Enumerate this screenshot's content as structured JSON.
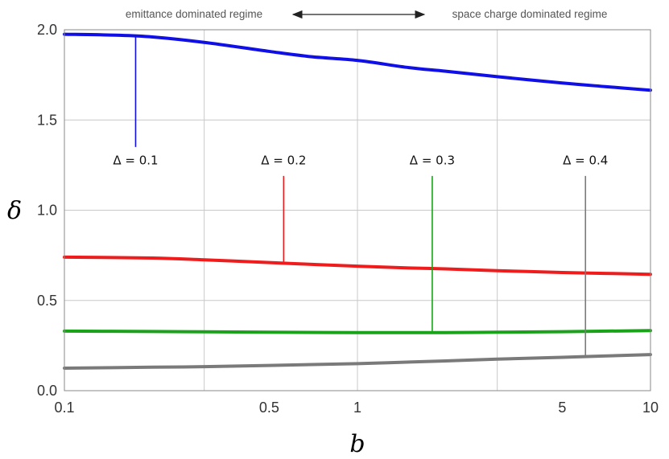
{
  "chart_data": {
    "type": "line",
    "xlabel": "b",
    "ylabel": "δ",
    "xscale": "log",
    "xlim": [
      0.1,
      10
    ],
    "ylim": [
      0,
      2
    ],
    "grid": true,
    "xticks": [
      {
        "value": 0.1,
        "label": "0.1"
      },
      {
        "value": 0.5,
        "label": "0.5"
      },
      {
        "value": 1,
        "label": "1"
      },
      {
        "value": 5,
        "label": "5"
      },
      {
        "value": 10,
        "label": "10"
      }
    ],
    "xgrid": [
      0.1,
      0.3,
      1,
      3,
      10
    ],
    "yticks": [
      {
        "value": 0,
        "label": "0.0"
      },
      {
        "value": 0.5,
        "label": "0.5"
      },
      {
        "value": 1,
        "label": "1.0"
      },
      {
        "value": 1.5,
        "label": "1.5"
      },
      {
        "value": 2,
        "label": "2.0"
      }
    ],
    "series": [
      {
        "name": "Δ = 0.1",
        "color": "#1010e6",
        "x": [
          0.1,
          0.15,
          0.2,
          0.3,
          0.5,
          0.7,
          1,
          1.5,
          2,
          3,
          5,
          7,
          10
        ],
        "y": [
          1.975,
          1.97,
          1.96,
          1.93,
          1.88,
          1.85,
          1.83,
          1.79,
          1.77,
          1.74,
          1.705,
          1.685,
          1.665
        ]
      },
      {
        "name": "Δ = 0.2",
        "color": "#ee1c1c",
        "x": [
          0.1,
          0.2,
          0.3,
          0.5,
          0.7,
          1,
          1.5,
          2,
          3,
          5,
          7,
          10
        ],
        "y": [
          0.74,
          0.735,
          0.725,
          0.71,
          0.7,
          0.69,
          0.68,
          0.675,
          0.665,
          0.655,
          0.65,
          0.645
        ]
      },
      {
        "name": "Δ = 0.3",
        "color": "#1aa31a",
        "x": [
          0.1,
          0.2,
          0.3,
          0.5,
          1,
          2,
          3,
          5,
          10
        ],
        "y": [
          0.33,
          0.328,
          0.326,
          0.324,
          0.322,
          0.322,
          0.324,
          0.327,
          0.333
        ]
      },
      {
        "name": "Δ = 0.4",
        "color": "#7a7a7a",
        "x": [
          0.1,
          0.2,
          0.3,
          0.5,
          1,
          2,
          3,
          5,
          10
        ],
        "y": [
          0.125,
          0.13,
          0.133,
          0.14,
          0.15,
          0.165,
          0.175,
          0.185,
          0.2
        ]
      }
    ],
    "annotations": [
      {
        "label": "Δ = 0.1",
        "series": 0,
        "x": 0.175,
        "y_top": 1.96,
        "y_bottom": 1.35,
        "label_y": 1.28
      },
      {
        "label": "Δ = 0.2",
        "series": 1,
        "x": 0.56,
        "y_top": 1.19,
        "y_bottom": 0.715,
        "label_y": 1.28
      },
      {
        "label": "Δ = 0.3",
        "series": 2,
        "x": 1.8,
        "y_top": 1.19,
        "y_bottom": 0.33,
        "label_y": 1.28
      },
      {
        "label": "Δ = 0.4",
        "series": 3,
        "x": 6.0,
        "y_top": 1.19,
        "y_bottom": 0.19,
        "label_y": 1.28
      }
    ],
    "regime_labels": {
      "left": "emittance dominated regime",
      "right": "space charge dominated regime",
      "arrow": "double-arrow"
    }
  }
}
